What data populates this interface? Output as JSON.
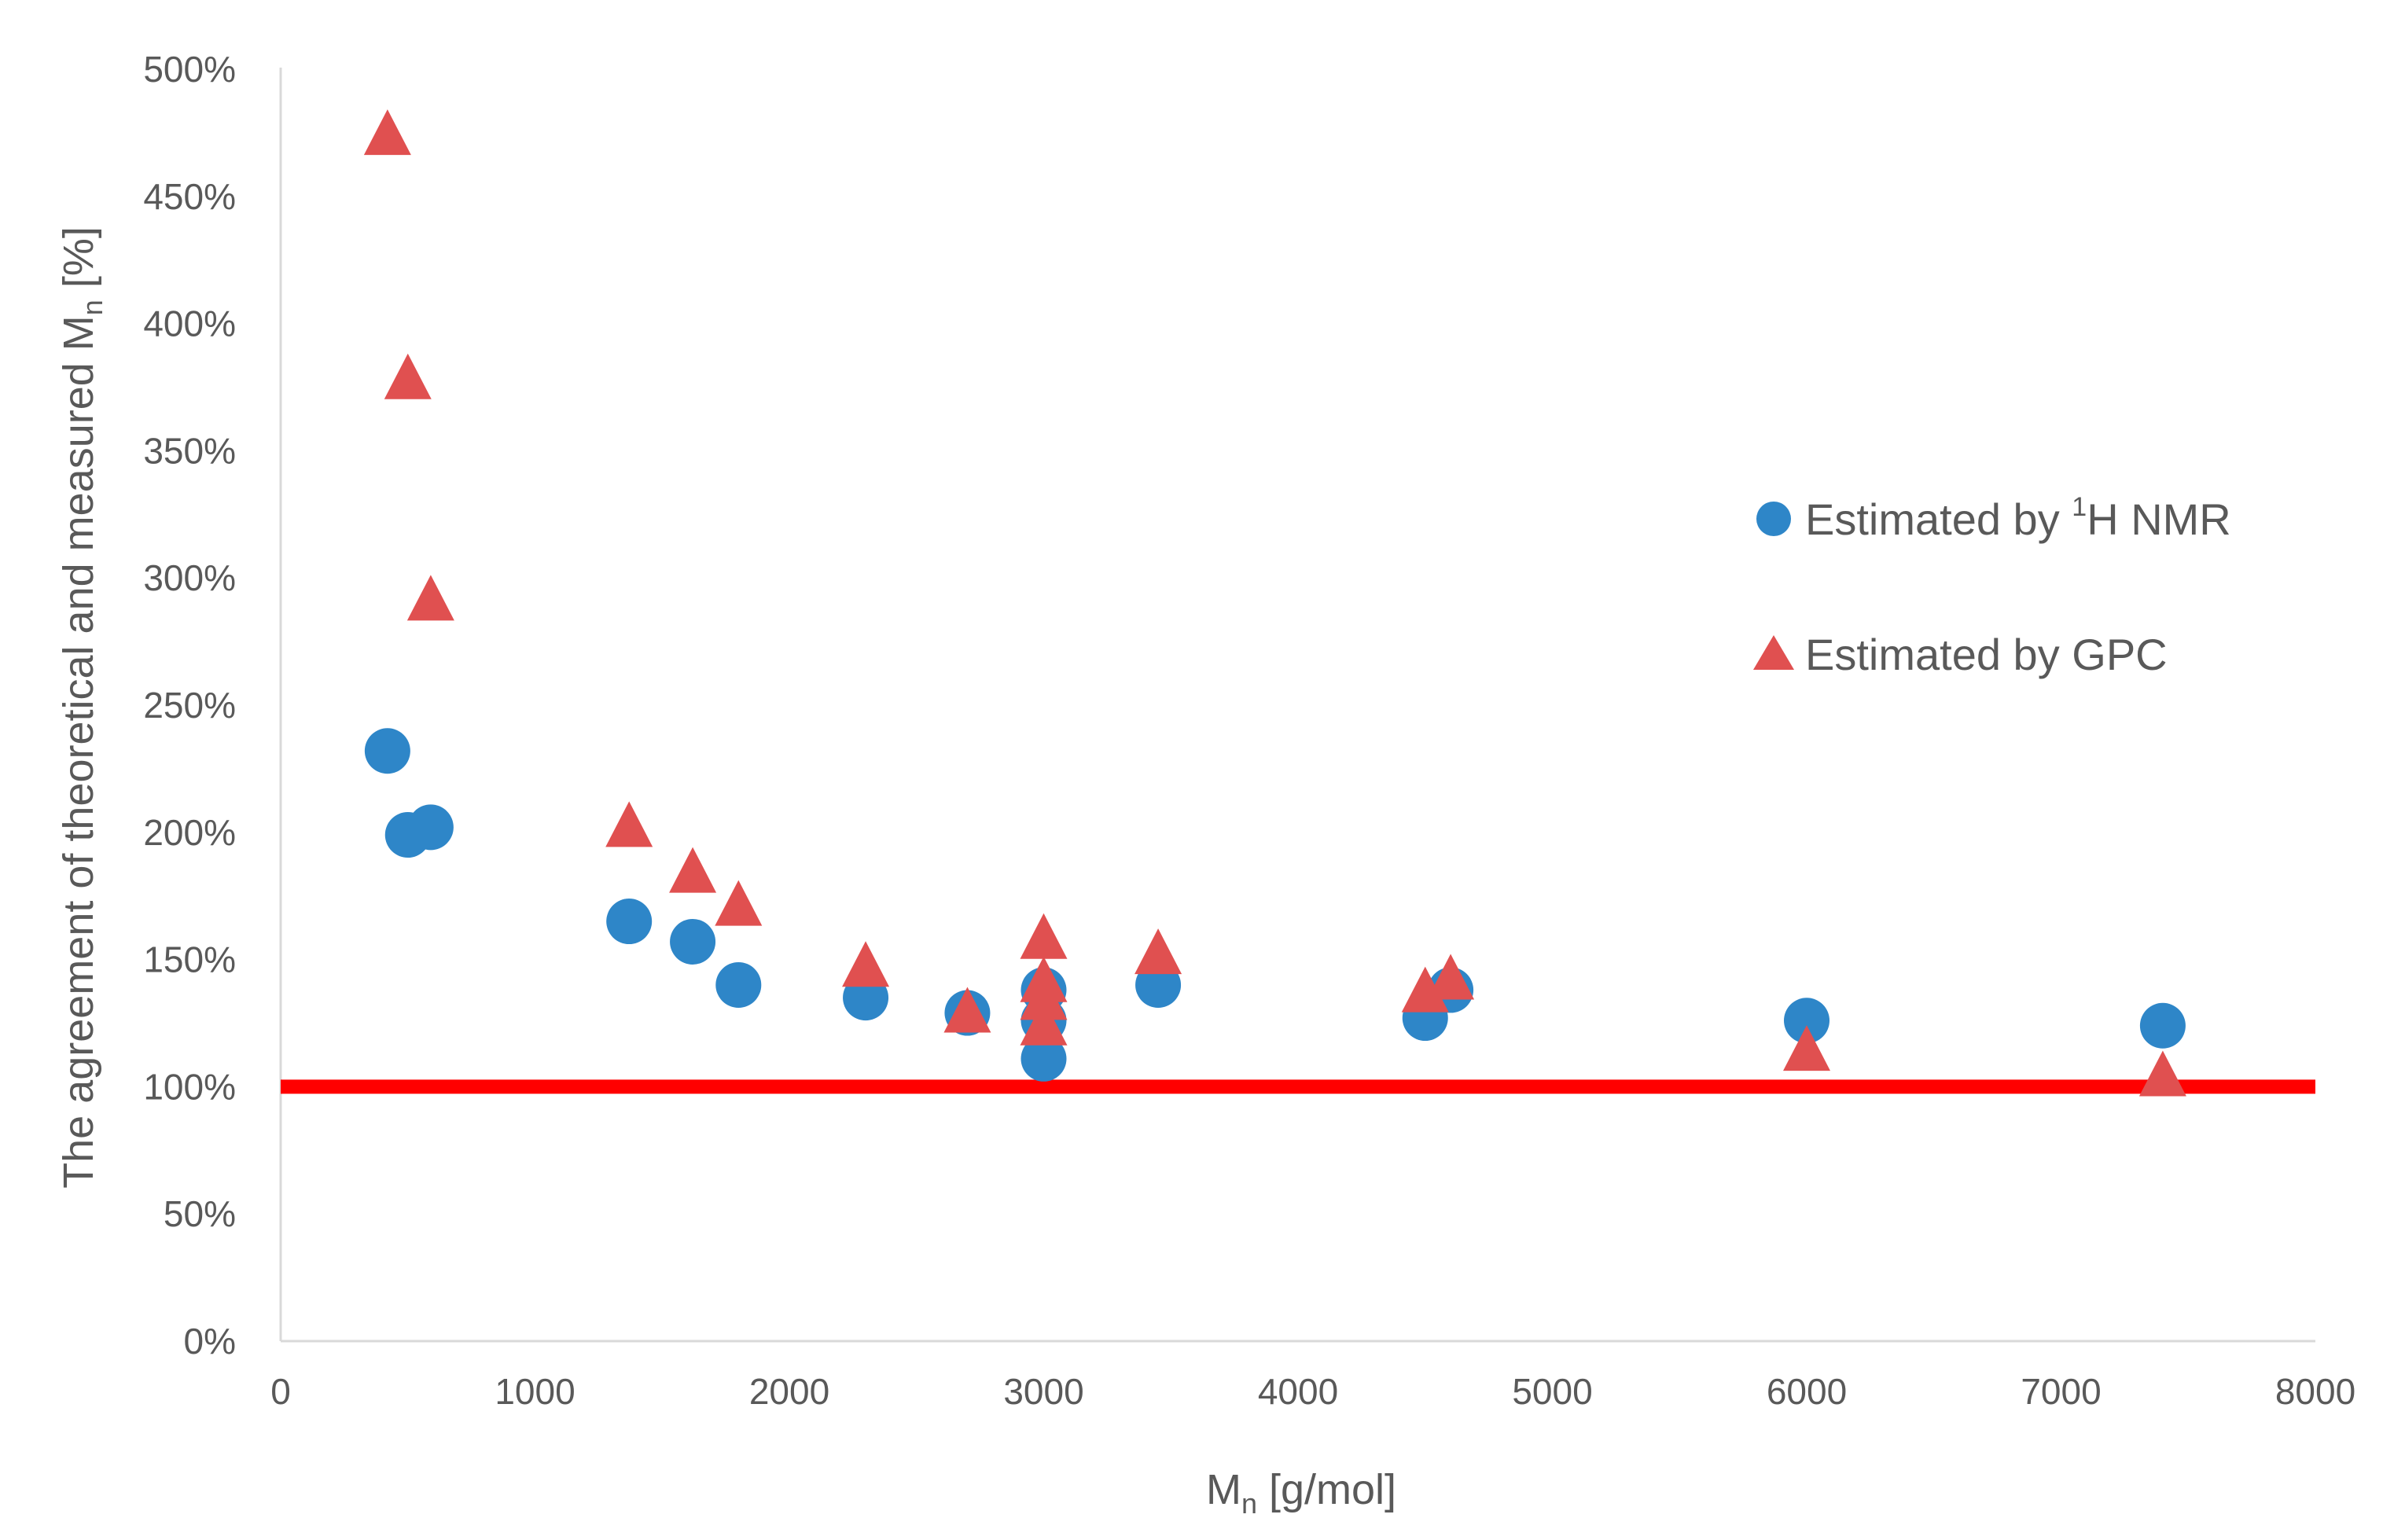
{
  "chart_data": {
    "type": "scatter",
    "title": "",
    "xlabel": {
      "main": "M",
      "sub": "n",
      "rest": " [g/mol]"
    },
    "ylabel": {
      "main": "The agreement of theoretical and measured M",
      "sub": "n",
      "rest": " [%]"
    },
    "xlim": [
      0,
      8000
    ],
    "ylim": [
      0,
      500
    ],
    "xticks": [
      0,
      1000,
      2000,
      3000,
      4000,
      5000,
      6000,
      7000,
      8000
    ],
    "xtick_labels": [
      "0",
      "1000",
      "2000",
      "3000",
      "4000",
      "5000",
      "6000",
      "7000",
      "8000"
    ],
    "yticks": [
      0,
      50,
      100,
      150,
      200,
      250,
      300,
      350,
      400,
      450,
      500
    ],
    "ytick_labels": [
      "0%",
      "50%",
      "100%",
      "150%",
      "200%",
      "250%",
      "300%",
      "350%",
      "400%",
      "450%",
      "500%"
    ],
    "grid": false,
    "legend_position": "right",
    "reference_line": {
      "y": 100,
      "color": "#ff0000"
    },
    "series": [
      {
        "name": {
          "pre": "Estimated by ",
          "sup": "1",
          "post": "H NMR"
        },
        "marker": "circle",
        "color": "#2e86c8",
        "points": [
          {
            "x": 420,
            "y": 232
          },
          {
            "x": 500,
            "y": 199
          },
          {
            "x": 590,
            "y": 202
          },
          {
            "x": 1370,
            "y": 165
          },
          {
            "x": 1620,
            "y": 157
          },
          {
            "x": 1800,
            "y": 140
          },
          {
            "x": 2300,
            "y": 135
          },
          {
            "x": 2700,
            "y": 129
          },
          {
            "x": 3000,
            "y": 138
          },
          {
            "x": 3000,
            "y": 126
          },
          {
            "x": 3000,
            "y": 111
          },
          {
            "x": 3450,
            "y": 140
          },
          {
            "x": 4500,
            "y": 127
          },
          {
            "x": 4600,
            "y": 138
          },
          {
            "x": 6000,
            "y": 126
          },
          {
            "x": 7400,
            "y": 124
          }
        ]
      },
      {
        "name": {
          "pre": "Estimated by GPC",
          "sup": "",
          "post": ""
        },
        "marker": "triangle",
        "color": "#e05050",
        "points": [
          {
            "x": 420,
            "y": 474
          },
          {
            "x": 500,
            "y": 378
          },
          {
            "x": 590,
            "y": 291
          },
          {
            "x": 1370,
            "y": 202
          },
          {
            "x": 1620,
            "y": 184
          },
          {
            "x": 1800,
            "y": 171
          },
          {
            "x": 2300,
            "y": 147
          },
          {
            "x": 2700,
            "y": 129
          },
          {
            "x": 3000,
            "y": 158
          },
          {
            "x": 3000,
            "y": 141
          },
          {
            "x": 3000,
            "y": 134
          },
          {
            "x": 3000,
            "y": 124
          },
          {
            "x": 3450,
            "y": 152
          },
          {
            "x": 4500,
            "y": 137
          },
          {
            "x": 4600,
            "y": 142
          },
          {
            "x": 6000,
            "y": 114
          },
          {
            "x": 7400,
            "y": 104
          }
        ]
      }
    ]
  }
}
